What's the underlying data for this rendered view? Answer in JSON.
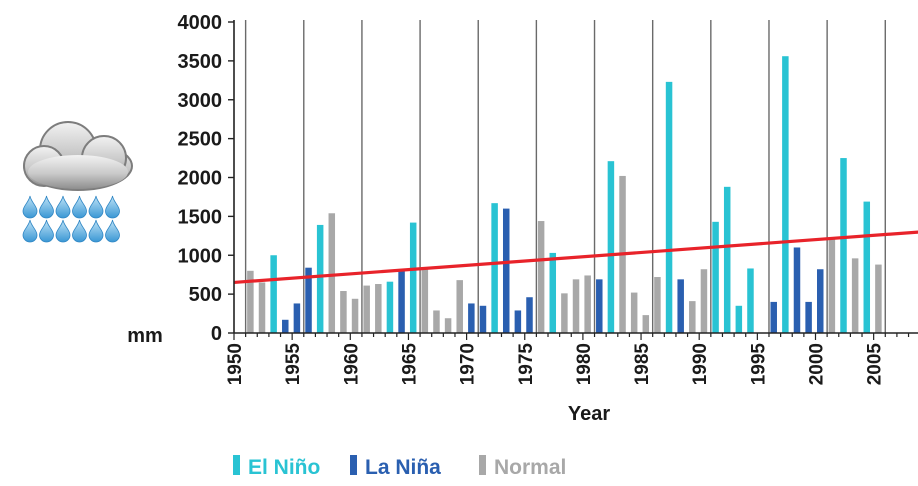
{
  "chart_data": {
    "type": "bar",
    "unit_label": "mm",
    "xlabel": "Year",
    "ylabel": "",
    "ylim": [
      0,
      4000
    ],
    "yticks": [
      0,
      500,
      1000,
      1500,
      2000,
      2500,
      3000,
      3500,
      4000
    ],
    "xlim": [
      1950,
      2009
    ],
    "xticks": [
      1950,
      1955,
      1960,
      1965,
      1970,
      1975,
      1980,
      1985,
      1990,
      1995,
      2000,
      2005
    ],
    "vertical_gridlines": [
      1951,
      1956,
      1961,
      1966,
      1971,
      1976,
      1981,
      1986,
      1991,
      1996,
      2001,
      2006
    ],
    "legend_position": "bottom",
    "legend": [
      {
        "key": "elnino",
        "label": "El Niño",
        "color": "#29c3d3"
      },
      {
        "key": "lanina",
        "label": "La Niña",
        "color": "#2a5fb0"
      },
      {
        "key": "normal",
        "label": "Normal",
        "color": "#a8a8a8"
      }
    ],
    "bars": [
      {
        "year": 1951,
        "value": 800,
        "phase": "normal"
      },
      {
        "year": 1952,
        "value": 650,
        "phase": "normal"
      },
      {
        "year": 1953,
        "value": 1000,
        "phase": "elnino"
      },
      {
        "year": 1954,
        "value": 170,
        "phase": "lanina"
      },
      {
        "year": 1955,
        "value": 380,
        "phase": "lanina"
      },
      {
        "year": 1956,
        "value": 840,
        "phase": "lanina"
      },
      {
        "year": 1957,
        "value": 1390,
        "phase": "elnino"
      },
      {
        "year": 1958,
        "value": 1540,
        "phase": "normal"
      },
      {
        "year": 1959,
        "value": 540,
        "phase": "normal"
      },
      {
        "year": 1960,
        "value": 440,
        "phase": "normal"
      },
      {
        "year": 1961,
        "value": 610,
        "phase": "normal"
      },
      {
        "year": 1962,
        "value": 630,
        "phase": "normal"
      },
      {
        "year": 1963,
        "value": 660,
        "phase": "elnino"
      },
      {
        "year": 1964,
        "value": 800,
        "phase": "lanina"
      },
      {
        "year": 1965,
        "value": 1420,
        "phase": "elnino"
      },
      {
        "year": 1966,
        "value": 820,
        "phase": "normal"
      },
      {
        "year": 1967,
        "value": 290,
        "phase": "normal"
      },
      {
        "year": 1968,
        "value": 190,
        "phase": "normal"
      },
      {
        "year": 1969,
        "value": 680,
        "phase": "normal"
      },
      {
        "year": 1970,
        "value": 380,
        "phase": "lanina"
      },
      {
        "year": 1971,
        "value": 350,
        "phase": "lanina"
      },
      {
        "year": 1972,
        "value": 1670,
        "phase": "elnino"
      },
      {
        "year": 1973,
        "value": 1600,
        "phase": "lanina"
      },
      {
        "year": 1974,
        "value": 290,
        "phase": "lanina"
      },
      {
        "year": 1975,
        "value": 460,
        "phase": "lanina"
      },
      {
        "year": 1976,
        "value": 1440,
        "phase": "normal"
      },
      {
        "year": 1977,
        "value": 1030,
        "phase": "elnino"
      },
      {
        "year": 1978,
        "value": 510,
        "phase": "normal"
      },
      {
        "year": 1979,
        "value": 690,
        "phase": "normal"
      },
      {
        "year": 1980,
        "value": 740,
        "phase": "normal"
      },
      {
        "year": 1981,
        "value": 690,
        "phase": "lanina"
      },
      {
        "year": 1982,
        "value": 2210,
        "phase": "elnino"
      },
      {
        "year": 1983,
        "value": 2020,
        "phase": "normal"
      },
      {
        "year": 1984,
        "value": 520,
        "phase": "normal"
      },
      {
        "year": 1985,
        "value": 230,
        "phase": "normal"
      },
      {
        "year": 1986,
        "value": 720,
        "phase": "normal"
      },
      {
        "year": 1987,
        "value": 3230,
        "phase": "elnino"
      },
      {
        "year": 1988,
        "value": 690,
        "phase": "lanina"
      },
      {
        "year": 1989,
        "value": 410,
        "phase": "normal"
      },
      {
        "year": 1990,
        "value": 820,
        "phase": "normal"
      },
      {
        "year": 1991,
        "value": 1430,
        "phase": "elnino"
      },
      {
        "year": 1992,
        "value": 1880,
        "phase": "elnino"
      },
      {
        "year": 1993,
        "value": 350,
        "phase": "elnino"
      },
      {
        "year": 1994,
        "value": 830,
        "phase": "elnino"
      },
      {
        "year": 1996,
        "value": 400,
        "phase": "lanina"
      },
      {
        "year": 1997,
        "value": 3560,
        "phase": "elnino"
      },
      {
        "year": 1998,
        "value": 1100,
        "phase": "lanina"
      },
      {
        "year": 1999,
        "value": 400,
        "phase": "lanina"
      },
      {
        "year": 2000,
        "value": 820,
        "phase": "lanina"
      },
      {
        "year": 2001,
        "value": 1210,
        "phase": "normal"
      },
      {
        "year": 2002,
        "value": 2250,
        "phase": "elnino"
      },
      {
        "year": 2003,
        "value": 960,
        "phase": "normal"
      },
      {
        "year": 2004,
        "value": 1690,
        "phase": "elnino"
      },
      {
        "year": 2005,
        "value": 880,
        "phase": "normal"
      }
    ],
    "trendline": {
      "color": "#e8232a",
      "from": {
        "year": 1950,
        "value": 650
      },
      "to": {
        "year": 2009,
        "value": 1300
      }
    },
    "icon": "rain-cloud-icon"
  }
}
